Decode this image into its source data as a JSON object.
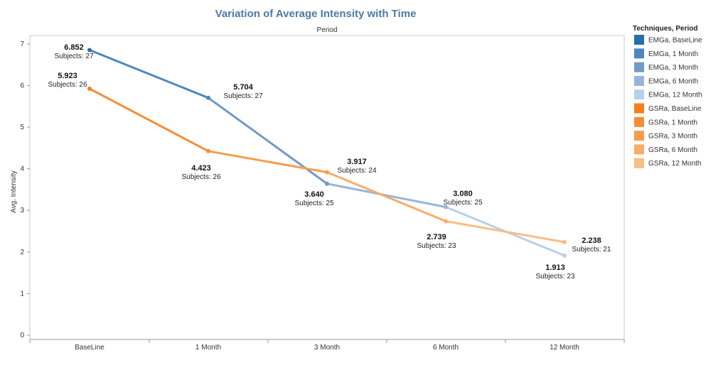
{
  "chart_data": {
    "type": "line",
    "title": "Variation of Average Intensity with Time",
    "column_header": "Period",
    "ylabel": "Avg. Intensity",
    "xlabel": "",
    "categories": [
      "BaseLine",
      "1 Month",
      "3 Month",
      "6 Month",
      "12 Month"
    ],
    "ylim": [
      0,
      7.2
    ],
    "yticks": [
      0,
      1,
      2,
      3,
      4,
      5,
      6,
      7
    ],
    "grid": false,
    "legend_position": "right",
    "legend_title": "Techniques, Period",
    "series": [
      {
        "name": "EMGa",
        "values": [
          6.852,
          5.704,
          3.64,
          3.08,
          1.913
        ],
        "value_labels": [
          "6.852",
          "5.704",
          "3.640",
          "3.080",
          "1.913"
        ],
        "subject_labels": [
          "Subjects: 27",
          "Subjects: 27",
          "Subjects: 25",
          "Subjects: 25",
          "Subjects: 23"
        ],
        "colors": [
          "#2a6ea6",
          "#4d87bd",
          "#7199c8",
          "#97b5da",
          "#b9cfe9"
        ]
      },
      {
        "name": "GSRa",
        "values": [
          5.923,
          4.423,
          3.917,
          2.739,
          2.238
        ],
        "value_labels": [
          "5.923",
          "4.423",
          "3.917",
          "2.739",
          "2.238"
        ],
        "subject_labels": [
          "Subjects: 26",
          "Subjects: 26",
          "Subjects: 24",
          "Subjects: 23",
          "Subjects: 21"
        ],
        "colors": [
          "#f47e1d",
          "#f58d35",
          "#f69c4e",
          "#f8ac69",
          "#fabd83"
        ]
      }
    ],
    "legend": [
      {
        "label": "EMGa, BaseLine",
        "color": "#2a6ea6"
      },
      {
        "label": "EMGa, 1 Month",
        "color": "#4d87bd"
      },
      {
        "label": "EMGa, 3 Month",
        "color": "#7199c8"
      },
      {
        "label": "EMGa, 6 Month",
        "color": "#97b5da"
      },
      {
        "label": "EMGa, 12 Month",
        "color": "#b9cfe9"
      },
      {
        "label": "GSRa, BaseLine",
        "color": "#f47e1d"
      },
      {
        "label": "GSRa, 1 Month",
        "color": "#f58d35"
      },
      {
        "label": "GSRa, 3 Month",
        "color": "#f69c4e"
      },
      {
        "label": "GSRa, 6 Month",
        "color": "#f8ac69"
      },
      {
        "label": "GSRa, 12 Month",
        "color": "#fabd83"
      }
    ]
  }
}
